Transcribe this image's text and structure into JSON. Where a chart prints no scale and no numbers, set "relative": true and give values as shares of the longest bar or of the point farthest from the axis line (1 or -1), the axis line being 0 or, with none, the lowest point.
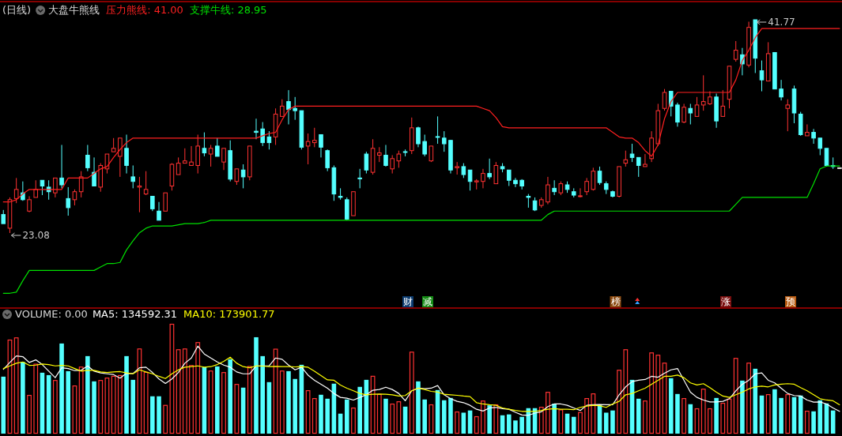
{
  "chart_data": [
    {
      "type": "candlestick",
      "title": "(日线)",
      "subtitle": "大盘牛熊线",
      "categories": [
        null,
        null,
        null,
        null,
        null,
        null,
        null,
        null,
        null,
        null,
        null,
        null,
        null,
        null,
        null,
        null,
        null,
        null,
        null,
        null,
        null,
        null,
        null,
        null,
        null,
        null,
        null,
        null,
        null,
        null,
        null,
        null,
        null,
        null,
        null,
        null,
        null,
        null,
        null,
        null,
        null,
        null,
        null,
        null,
        null,
        null,
        null,
        null,
        null,
        null,
        null,
        null,
        null,
        null,
        null,
        null,
        null,
        null,
        null,
        null,
        null,
        null,
        null,
        null,
        null,
        null,
        null,
        null,
        null,
        null,
        null,
        null,
        null,
        null,
        null,
        null,
        null,
        null,
        null,
        null,
        null,
        null,
        null,
        null,
        null,
        null,
        null,
        null,
        null,
        null,
        null,
        null,
        null,
        null,
        null,
        null,
        null,
        null,
        null,
        null,
        null,
        null,
        null,
        null,
        null,
        null,
        null,
        null,
        null,
        null,
        null,
        null,
        null,
        null,
        null,
        null,
        null,
        null,
        null,
        null,
        null,
        null,
        null,
        null,
        null,
        null,
        null,
        null,
        null,
        null
      ],
      "ohlc": [
        [
          24.7,
          25.1,
          23.9,
          23.9
        ],
        [
          23.5,
          26.2,
          23.08,
          26.0
        ],
        [
          26.1,
          27.9,
          25.7,
          26.9
        ],
        [
          26.6,
          27.6,
          25.9,
          26.0
        ],
        [
          25.0,
          26.3,
          24.9,
          26.0
        ],
        [
          26.2,
          27.7,
          26.2,
          26.9
        ],
        [
          27.7,
          27.7,
          26.4,
          27.2
        ],
        [
          27.1,
          27.7,
          26.0,
          26.7
        ],
        [
          26.6,
          27.9,
          26.2,
          27.9
        ],
        [
          27.9,
          30.8,
          27.0,
          27.3
        ],
        [
          26.1,
          27.1,
          24.6,
          25.3
        ],
        [
          26.0,
          26.9,
          25.5,
          26.7
        ],
        [
          26.7,
          28.5,
          26.2,
          28.0
        ],
        [
          29.9,
          30.8,
          28.5,
          28.8
        ],
        [
          28.4,
          29.7,
          27.2,
          27.2
        ],
        [
          27.1,
          29.2,
          26.7,
          29.0
        ],
        [
          28.7,
          30.0,
          28.3,
          30.0
        ],
        [
          30.2,
          31.4,
          30.2,
          30.5
        ],
        [
          29.8,
          31.4,
          28.0,
          31.4
        ],
        [
          30.5,
          31.7,
          28.3,
          29.0
        ],
        [
          28.0,
          29.0,
          27.0,
          27.6
        ],
        [
          27.1,
          28.0,
          24.9,
          27.2
        ],
        [
          26.5,
          28.5,
          26.4,
          26.9
        ],
        [
          26.3,
          26.3,
          25.0,
          25.2
        ],
        [
          25.0,
          25.8,
          24.2,
          24.2
        ],
        [
          25.0,
          26.6,
          25.0,
          26.6
        ],
        [
          27.2,
          29.2,
          26.8,
          29.1
        ],
        [
          28.2,
          29.7,
          28.2,
          29.2
        ],
        [
          29.2,
          30.5,
          29.2,
          29.4
        ],
        [
          29.0,
          30.7,
          29.0,
          29.3
        ],
        [
          29.0,
          31.7,
          28.3,
          30.7
        ],
        [
          30.5,
          31.9,
          29.8,
          30.1
        ],
        [
          30.0,
          30.8,
          28.9,
          30.5
        ],
        [
          30.7,
          31.4,
          29.8,
          29.8
        ],
        [
          29.3,
          30.5,
          28.6,
          30.5
        ],
        [
          30.3,
          31.2,
          27.6,
          27.8
        ],
        [
          27.6,
          28.7,
          27.3,
          28.7
        ],
        [
          28.6,
          29.1,
          27.0,
          28.0
        ],
        [
          28.0,
          30.7,
          27.7,
          30.7
        ],
        [
          32.0,
          33.1,
          31.3,
          31.9
        ],
        [
          32.2,
          32.8,
          30.7,
          31.0
        ],
        [
          31.5,
          32.0,
          30.4,
          31.0
        ],
        [
          31.5,
          34.0,
          30.8,
          33.5
        ],
        [
          33.3,
          34.8,
          33.3,
          34.2
        ],
        [
          34.6,
          35.6,
          32.6,
          33.9
        ],
        [
          34.0,
          35.0,
          33.0,
          33.8
        ],
        [
          33.8,
          33.8,
          30.4,
          30.6
        ],
        [
          30.7,
          31.8,
          29.1,
          31.1
        ],
        [
          31.0,
          32.3,
          30.6,
          31.2
        ],
        [
          31.7,
          31.7,
          29.7,
          30.6
        ],
        [
          30.3,
          30.4,
          28.5,
          28.8
        ],
        [
          28.8,
          29.0,
          25.9,
          26.5
        ],
        [
          26.3,
          27.0,
          26.0,
          26.2
        ],
        [
          26.0,
          26.2,
          24.2,
          24.3
        ],
        [
          24.6,
          26.7,
          24.6,
          26.7
        ],
        [
          27.9,
          28.7,
          27.0,
          27.86
        ],
        [
          30.0,
          30.2,
          28.3,
          28.6
        ],
        [
          28.4,
          31.3,
          28.2,
          30.5
        ],
        [
          29.9,
          30.6,
          29.3,
          30.1
        ],
        [
          29.9,
          30.8,
          28.9,
          29.0
        ],
        [
          28.7,
          29.9,
          28.3,
          29.6
        ],
        [
          29.4,
          30.3,
          28.8,
          30.0
        ],
        [
          30.21,
          30.4,
          29.8,
          30.17
        ],
        [
          30.3,
          33.2,
          30.0,
          32.3
        ],
        [
          32.3,
          32.4,
          30.6,
          30.9
        ],
        [
          31.1,
          31.7,
          29.8,
          30.0
        ],
        [
          29.4,
          30.7,
          29.3,
          30.7
        ],
        [
          31.53,
          33.3,
          30.9,
          31.48
        ],
        [
          31.4,
          32.0,
          30.2,
          30.9
        ],
        [
          31.2,
          31.2,
          28.3,
          28.6
        ],
        [
          28.8,
          29.3,
          28.2,
          28.9
        ],
        [
          28.9,
          29.2,
          27.9,
          28.2
        ],
        [
          28.6,
          28.6,
          26.8,
          27.6
        ],
        [
          27.56,
          27.8,
          26.9,
          27.65
        ],
        [
          27.6,
          28.7,
          27.0,
          28.3
        ],
        [
          28.3,
          29.6,
          27.8,
          28.0
        ],
        [
          27.4,
          29.3,
          27.4,
          29.0
        ],
        [
          28.9,
          29.2,
          28.4,
          28.7
        ],
        [
          28.6,
          28.6,
          27.2,
          27.7
        ],
        [
          27.7,
          27.9,
          27.1,
          27.4
        ],
        [
          27.7,
          27.8,
          26.9,
          27.2
        ],
        [
          26.3,
          26.5,
          25.3,
          26.2
        ],
        [
          25.9,
          26.2,
          25.0,
          25.1
        ],
        [
          25.5,
          26.2,
          25.3,
          26.0
        ],
        [
          25.8,
          28.0,
          25.6,
          27.3
        ],
        [
          27.0,
          27.7,
          26.4,
          26.7
        ],
        [
          26.6,
          27.6,
          26.4,
          27.4
        ],
        [
          27.3,
          27.6,
          26.6,
          26.9
        ],
        [
          26.7,
          27.0,
          26.2,
          26.4
        ],
        [
          26.27,
          27.0,
          26.2,
          26.34
        ],
        [
          26.7,
          27.9,
          26.4,
          27.6
        ],
        [
          26.9,
          28.8,
          26.8,
          28.5
        ],
        [
          28.5,
          28.9,
          27.3,
          27.5
        ],
        [
          27.4,
          27.6,
          26.5,
          26.9
        ],
        [
          26.7,
          26.8,
          26.2,
          26.3
        ],
        [
          26.3,
          28.9,
          26.2,
          28.9
        ],
        [
          29.2,
          30.3,
          28.9,
          29.5
        ],
        [
          30.0,
          30.9,
          29.3,
          29.7
        ],
        [
          29.7,
          29.7,
          28.0,
          29.0
        ],
        [
          28.9,
          30.0,
          28.9,
          29.1
        ],
        [
          29.6,
          32.0,
          29.3,
          31.4
        ],
        [
          30.9,
          34.4,
          30.7,
          33.8
        ],
        [
          34.0,
          35.7,
          33.8,
          35.4
        ],
        [
          35.5,
          35.5,
          33.3,
          34.2
        ],
        [
          34.3,
          34.5,
          32.4,
          32.8
        ],
        [
          32.8,
          34.4,
          32.7,
          34.1
        ],
        [
          34.0,
          34.4,
          32.6,
          33.6
        ],
        [
          33.3,
          35.0,
          33.3,
          34.3
        ],
        [
          34.3,
          36.9,
          33.8,
          34.6
        ],
        [
          34.4,
          35.5,
          34.3,
          35.0
        ],
        [
          35.0,
          35.3,
          32.3,
          32.9
        ],
        [
          33.3,
          35.6,
          33.3,
          34.2
        ],
        [
          34.8,
          37.7,
          34.0,
          37.7
        ],
        [
          38.3,
          39.9,
          38.1,
          39.1
        ],
        [
          38.7,
          39.3,
          36.9,
          37.9
        ],
        [
          37.8,
          41.6,
          37.6,
          41.1
        ],
        [
          41.77,
          41.77,
          37.1,
          38.4
        ],
        [
          37.3,
          38.2,
          35.5,
          36.5
        ],
        [
          36.4,
          39.8,
          36.4,
          38.8
        ],
        [
          38.9,
          38.9,
          35.7,
          35.7
        ],
        [
          35.7,
          36.5,
          34.7,
          35.0
        ],
        [
          34.0,
          34.8,
          32.0,
          34.3
        ],
        [
          35.7,
          36.0,
          32.7,
          33.6
        ],
        [
          33.5,
          33.7,
          31.6,
          31.7
        ],
        [
          31.6,
          32.6,
          31.6,
          31.9
        ],
        [
          31.9,
          32.2,
          30.9,
          31.4
        ],
        [
          31.4,
          31.4,
          29.9,
          30.5
        ],
        [
          30.5,
          30.5,
          28.9,
          29.0
        ],
        [
          29.0,
          29.7,
          28.7,
          28.9
        ],
        [
          28.8,
          28.8,
          28.8,
          28.8
        ]
      ],
      "series": [
        {
          "name": "压力熊线: 41.00",
          "type": "line",
          "color": "#ff2020",
          "values": [
            25.8,
            25.8,
            26.0,
            26.5,
            26.9,
            26.9,
            26.9,
            26.9,
            26.9,
            26.9,
            27.9,
            27.9,
            27.9,
            27.9,
            28.3,
            28.7,
            28.9,
            29.7,
            30.4,
            31.0,
            31.4,
            31.4,
            31.4,
            31.4,
            31.4,
            31.4,
            31.4,
            31.4,
            31.4,
            31.4,
            31.4,
            31.4,
            31.4,
            31.4,
            31.4,
            31.4,
            31.4,
            31.4,
            31.4,
            31.4,
            31.6,
            31.8,
            31.9,
            33.0,
            33.9,
            34.2,
            34.2,
            34.2,
            34.2,
            34.2,
            34.2,
            34.2,
            34.2,
            34.2,
            34.2,
            34.2,
            34.2,
            34.2,
            34.2,
            34.2,
            34.2,
            34.2,
            34.2,
            34.2,
            34.2,
            34.2,
            34.2,
            34.2,
            34.2,
            34.2,
            34.2,
            34.2,
            34.2,
            34.2,
            34.0,
            33.8,
            33.2,
            32.4,
            32.3,
            32.3,
            32.3,
            32.3,
            32.3,
            32.3,
            32.3,
            32.3,
            32.3,
            32.3,
            32.3,
            32.3,
            32.3,
            32.3,
            32.3,
            32.3,
            31.9,
            31.5,
            31.4,
            31.4,
            31.0,
            30.3,
            29.8,
            30.8,
            33.1,
            34.6,
            35.4,
            35.4,
            35.4,
            35.4,
            35.4,
            35.4,
            35.4,
            35.4,
            35.4,
            36.5,
            38.2,
            39.1,
            40.2,
            41.0,
            41.0,
            41.0,
            41.0,
            41.0,
            41.0,
            41.0,
            41.0,
            41.0,
            41.0,
            41.0,
            41.0,
            41.0
          ]
        },
        {
          "name": "支撑牛线: 28.95",
          "type": "line",
          "color": "#00e000",
          "values": [
            17.8,
            17.8,
            17.9,
            18.9,
            19.8,
            19.8,
            19.8,
            19.8,
            19.8,
            19.8,
            19.8,
            19.8,
            19.8,
            19.8,
            19.8,
            20.1,
            20.4,
            20.4,
            20.5,
            21.6,
            22.4,
            23.1,
            23.5,
            23.7,
            23.7,
            23.7,
            23.7,
            23.8,
            23.9,
            23.9,
            23.9,
            24.0,
            24.2,
            24.2,
            24.2,
            24.2,
            24.2,
            24.2,
            24.2,
            24.2,
            24.2,
            24.2,
            24.2,
            24.2,
            24.2,
            24.2,
            24.2,
            24.2,
            24.2,
            24.2,
            24.2,
            24.2,
            24.2,
            24.2,
            24.2,
            24.2,
            24.2,
            24.2,
            24.2,
            24.2,
            24.2,
            24.2,
            24.2,
            24.2,
            24.2,
            24.2,
            24.2,
            24.2,
            24.2,
            24.2,
            24.2,
            24.2,
            24.2,
            24.2,
            24.2,
            24.2,
            24.2,
            24.2,
            24.2,
            24.2,
            24.2,
            24.2,
            24.2,
            24.2,
            24.7,
            25.0,
            25.0,
            25.0,
            25.0,
            25.0,
            25.0,
            25.0,
            25.0,
            25.0,
            25.0,
            25.0,
            25.0,
            25.0,
            25.0,
            25.0,
            25.0,
            25.0,
            25.0,
            25.0,
            25.0,
            25.0,
            25.0,
            25.0,
            25.0,
            25.0,
            25.0,
            25.0,
            25.0,
            25.6,
            26.2,
            26.2,
            26.2,
            26.2,
            26.2,
            26.2,
            26.2,
            26.2,
            26.2,
            26.2,
            26.2,
            27.4,
            28.7,
            28.95,
            28.95,
            28.95
          ]
        }
      ],
      "annotations": [
        "41.77",
        "23.08",
        "财",
        "减",
        "榜",
        "涨",
        "预"
      ]
    },
    {
      "type": "bar",
      "relative": true,
      "title": "VOLUME: 0.00",
      "categories": [
        null,
        null,
        null,
        null,
        null,
        null,
        null,
        null,
        null,
        null,
        null,
        null,
        null,
        null,
        null,
        null,
        null,
        null,
        null,
        null,
        null,
        null,
        null,
        null,
        null,
        null,
        null,
        null,
        null,
        null,
        null,
        null,
        null,
        null,
        null,
        null,
        null,
        null,
        null,
        null,
        null,
        null,
        null,
        null,
        null,
        null,
        null,
        null,
        null,
        null,
        null,
        null,
        null,
        null,
        null,
        null,
        null,
        null,
        null,
        null,
        null,
        null,
        null,
        null,
        null,
        null,
        null,
        null,
        null,
        null,
        null,
        null,
        null,
        null,
        null,
        null,
        null,
        null,
        null,
        null,
        null,
        null,
        null,
        null,
        null,
        null,
        null,
        null,
        null,
        null,
        null,
        null,
        null,
        null,
        null,
        null,
        null,
        null,
        null,
        null,
        null,
        null,
        null,
        null,
        null,
        null,
        null,
        null,
        null,
        null,
        null,
        null,
        null,
        null,
        null,
        null,
        null,
        null,
        null,
        null,
        null,
        null,
        null,
        null,
        null,
        null,
        null,
        null,
        null,
        null
      ],
      "series": [
        {
          "values": [
            0.519,
            0.856,
            0.876,
            0.653,
            0.352,
            0.636,
            0.555,
            0.533,
            0.488,
            0.821,
            0.569,
            0.438,
            0.61,
            0.706,
            0.476,
            0.488,
            0.51,
            0.526,
            0.533,
            0.706,
            0.49,
            0.775,
            0.562,
            0.34,
            0.34,
            0.261,
            1,
            0.768,
            0.775,
            0.624,
            0.833,
            0.605,
            0.574,
            0.612,
            0.56,
            0.677,
            0.452,
            0.419,
            0.615,
            0.878,
            0.706,
            0.469,
            0.773,
            0.574,
            0.569,
            0.498,
            0.627,
            0.395,
            0.323,
            0.354,
            0.318,
            0.455,
            0.182,
            0.311,
            0.237,
            0.426,
            0.49,
            0.526,
            0.361,
            0.318,
            0.273,
            0.294,
            0.246,
            0.746,
            0.476,
            0.311,
            0.266,
            0.397,
            0.304,
            0.325,
            0.201,
            0.191,
            0.211,
            0.158,
            0.301,
            0.258,
            0.266,
            0.167,
            0.175,
            0.12,
            0.153,
            0.232,
            0.232,
            0.244,
            0.38,
            0.273,
            0.22,
            0.182,
            0.153,
            0.196,
            0.323,
            0.366,
            0.258,
            0.191,
            0.211,
            0.581,
            0.768,
            0.49,
            0.318,
            0.301,
            0.739,
            0.718,
            0.646,
            0.505,
            0.361,
            0.323,
            0.268,
            0.23,
            0.409,
            0.23,
            0.325,
            0.28,
            0.318,
            0.689,
            0.483,
            0.646,
            0.591,
            0.347,
            0.359,
            0.404,
            0.325,
            0.359,
            0.333,
            0.347,
            0.208,
            0.203,
            0.304,
            0.275,
            0.211,
            0
          ],
          "colors": [
            "#54ffff",
            "#ff3232",
            "#ff3232",
            "#54ffff",
            "#ff3232",
            "#ff3232",
            "#54ffff",
            "#54ffff",
            "#ff3232",
            "#54ffff",
            "#54ffff",
            "#ff3232",
            "#ff3232",
            "#54ffff",
            "#54ffff",
            "#ff3232",
            "#ff3232",
            "#ff3232",
            "#ff3232",
            "#54ffff",
            "#54ffff",
            "#ff3232",
            "#ff3232",
            "#54ffff",
            "#54ffff",
            "#ff3232",
            "#ff3232",
            "#ff3232",
            "#ff3232",
            "#ff3232",
            "#ff3232",
            "#54ffff",
            "#ff3232",
            "#54ffff",
            "#ff3232",
            "#54ffff",
            "#ff3232",
            "#54ffff",
            "#ff3232",
            "#54ffff",
            "#54ffff",
            "#54ffff",
            "#ff3232",
            "#ff3232",
            "#54ffff",
            "#54ffff",
            "#54ffff",
            "#ff3232",
            "#ff3232",
            "#54ffff",
            "#54ffff",
            "#54ffff",
            "#54ffff",
            "#54ffff",
            "#ff3232",
            "#54ffff",
            "#54ffff",
            "#ff3232",
            "#ff3232",
            "#54ffff",
            "#ff3232",
            "#ff3232",
            "#54ffff",
            "#ff3232",
            "#54ffff",
            "#54ffff",
            "#ff3232",
            "#54ffff",
            "#54ffff",
            "#54ffff",
            "#ff3232",
            "#54ffff",
            "#54ffff",
            "#ff3232",
            "#ff3232",
            "#54ffff",
            "#ff3232",
            "#54ffff",
            "#54ffff",
            "#54ffff",
            "#54ffff",
            "#54ffff",
            "#54ffff",
            "#ff3232",
            "#ff3232",
            "#54ffff",
            "#ff3232",
            "#54ffff",
            "#54ffff",
            "#ff3232",
            "#ff3232",
            "#ff3232",
            "#54ffff",
            "#54ffff",
            "#54ffff",
            "#ff3232",
            "#ff3232",
            "#54ffff",
            "#54ffff",
            "#ff3232",
            "#ff3232",
            "#ff3232",
            "#ff3232",
            "#54ffff",
            "#54ffff",
            "#ff3232",
            "#54ffff",
            "#ff3232",
            "#ff3232",
            "#ff3232",
            "#54ffff",
            "#ff3232",
            "#ff3232",
            "#ff3232",
            "#54ffff",
            "#ff3232",
            "#54ffff",
            "#54ffff",
            "#ff3232",
            "#54ffff",
            "#54ffff",
            "#ff3232",
            "#54ffff",
            "#54ffff",
            "#ff3232",
            "#54ffff",
            "#54ffff",
            "#54ffff",
            "#54ffff",
            "#54ffff"
          ]
        },
        {
          "name": "MA5: 134592.31",
          "type": "line",
          "color": "#ffffff",
          "values": [
            0.586,
            0.648,
            0.708,
            0.701,
            0.648,
            0.672,
            0.629,
            0.569,
            0.51,
            0.6,
            0.593,
            0.574,
            0.577,
            0.617,
            0.569,
            0.553,
            0.545,
            0.538,
            0.505,
            0.55,
            0.548,
            0.6,
            0.605,
            0.557,
            0.498,
            0.457,
            0.498,
            0.557,
            0.641,
            0.689,
            0.797,
            0.725,
            0.689,
            0.653,
            0.624,
            0.605,
            0.562,
            0.545,
            0.545,
            0.617,
            0.617,
            0.617,
            0.689,
            0.677,
            0.624,
            0.581,
            0.605,
            0.533,
            0.486,
            0.45,
            0.414,
            0.366,
            0.33,
            0.323,
            0.306,
            0.33,
            0.354,
            0.395,
            0.402,
            0.423,
            0.402,
            0.366,
            0.299,
            0.39,
            0.414,
            0.409,
            0.414,
            0.438,
            0.354,
            0.318,
            0.294,
            0.282,
            0.258,
            0.222,
            0.206,
            0.234,
            0.239,
            0.227,
            0.222,
            0.194,
            0.17,
            0.167,
            0.187,
            0.199,
            0.246,
            0.27,
            0.27,
            0.258,
            0.234,
            0.211,
            0.258,
            0.263,
            0.266,
            0.263,
            0.263,
            0.354,
            0.426,
            0.474,
            0.486,
            0.493,
            0.522,
            0.514,
            0.55,
            0.581,
            0.593,
            0.486,
            0.378,
            0.33,
            0.306,
            0.289,
            0.289,
            0.294,
            0.318,
            0.39,
            0.45,
            0.486,
            0.545,
            0.553,
            0.486,
            0.462,
            0.414,
            0.366,
            0.347,
            0.342,
            0.306,
            0.287,
            0.289,
            0.27,
            0.234,
            0.203
          ]
        },
        {
          "name": "MA10: 173901.77",
          "type": "line",
          "color": "#ffff00",
          "values": [
            0.593,
            0.617,
            0.641,
            0.653,
            0.622,
            0.624,
            0.634,
            0.629,
            0.617,
            0.622,
            0.617,
            0.593,
            0.569,
            0.577,
            0.577,
            0.562,
            0.557,
            0.562,
            0.565,
            0.553,
            0.545,
            0.581,
            0.562,
            0.545,
            0.522,
            0.502,
            0.545,
            0.581,
            0.605,
            0.61,
            0.617,
            0.605,
            0.61,
            0.629,
            0.658,
            0.696,
            0.641,
            0.61,
            0.6,
            0.617,
            0.615,
            0.61,
            0.612,
            0.61,
            0.61,
            0.608,
            0.61,
            0.605,
            0.569,
            0.529,
            0.49,
            0.486,
            0.443,
            0.414,
            0.39,
            0.366,
            0.354,
            0.359,
            0.361,
            0.359,
            0.354,
            0.342,
            0.347,
            0.39,
            0.414,
            0.402,
            0.385,
            0.378,
            0.359,
            0.354,
            0.349,
            0.342,
            0.337,
            0.282,
            0.27,
            0.263,
            0.258,
            0.234,
            0.222,
            0.211,
            0.203,
            0.203,
            0.203,
            0.211,
            0.222,
            0.227,
            0.222,
            0.222,
            0.218,
            0.239,
            0.251,
            0.258,
            0.254,
            0.239,
            0.27,
            0.294,
            0.354,
            0.366,
            0.39,
            0.414,
            0.45,
            0.486,
            0.522,
            0.522,
            0.533,
            0.51,
            0.462,
            0.443,
            0.455,
            0.419,
            0.378,
            0.342,
            0.33,
            0.354,
            0.378,
            0.407,
            0.426,
            0.433,
            0.426,
            0.443,
            0.45,
            0.455,
            0.45,
            0.419,
            0.39,
            0.354,
            0.318,
            0.306,
            0.299,
            0.263
          ]
        }
      ]
    }
  ]
}
